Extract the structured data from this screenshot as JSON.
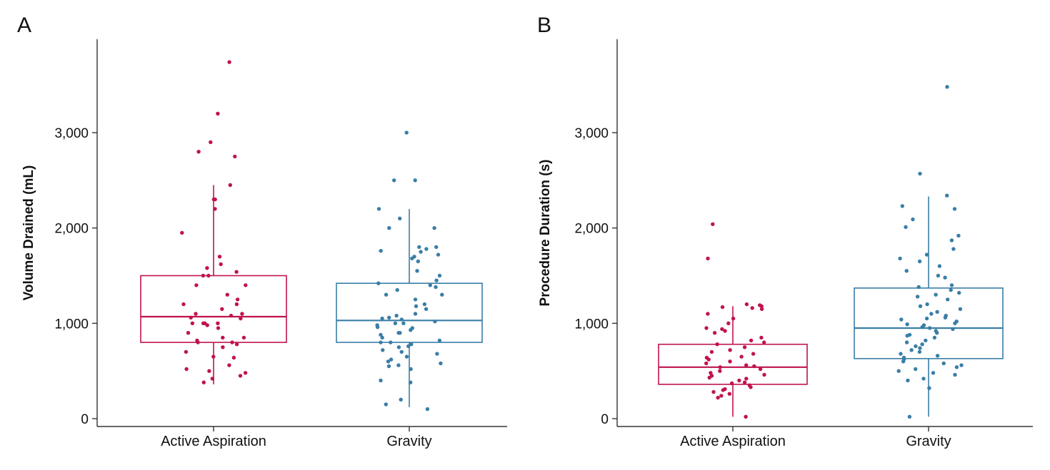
{
  "colors": {
    "active_aspiration": "#c0134f",
    "gravity": "#3a7ea6",
    "axis": "#333333"
  },
  "chart_data": [
    {
      "type": "box",
      "panel_label": "A",
      "ylabel": "Volume Drained (mL)",
      "xlabel": "",
      "ylim": [
        -50,
        4000
      ],
      "yticks": [
        0,
        1000,
        2000,
        3000
      ],
      "ytick_labels": [
        "0",
        "1,000",
        "2,000",
        "3,000"
      ],
      "categories": [
        "Active Aspiration",
        "Gravity"
      ],
      "boxes": [
        {
          "name": "Active Aspiration",
          "whisker_low": 360,
          "q1": 800,
          "median": 1070,
          "q3": 1500,
          "whisker_high": 2450
        },
        {
          "name": "Gravity",
          "whisker_low": 120,
          "q1": 800,
          "median": 1030,
          "q3": 1420,
          "whisker_high": 2200
        }
      ],
      "points": [
        [
          3740,
          3200,
          2900,
          2800,
          2750,
          2450,
          2300,
          2300,
          2200,
          1950,
          1700,
          1620,
          1580,
          1540,
          1500,
          1500,
          1400,
          1400,
          1300,
          1250,
          1200,
          1200,
          1150,
          1100,
          1100,
          1080,
          1060,
          1050,
          1000,
          1000,
          1000,
          1000,
          980,
          950,
          900,
          850,
          850,
          820,
          800,
          800,
          780,
          750,
          700,
          650,
          640,
          560,
          520,
          500,
          480,
          450,
          420,
          380
        ],
        [
          3000,
          2500,
          2500,
          2200,
          2100,
          2000,
          2000,
          1800,
          1800,
          1780,
          1760,
          1750,
          1720,
          1700,
          1680,
          1650,
          1550,
          1500,
          1450,
          1420,
          1400,
          1380,
          1350,
          1300,
          1300,
          1250,
          1200,
          1180,
          1150,
          1100,
          1080,
          1060,
          1050,
          1040,
          1020,
          1000,
          1000,
          980,
          960,
          950,
          930,
          900,
          900,
          880,
          850,
          820,
          800,
          800,
          780,
          760,
          750,
          720,
          700,
          680,
          650,
          620,
          600,
          580,
          560,
          550,
          520,
          400,
          380,
          200,
          150,
          100
        ]
      ]
    },
    {
      "type": "box",
      "panel_label": "B",
      "ylabel": "Procedure Duration (s)",
      "xlabel": "",
      "ylim": [
        -50,
        4000
      ],
      "yticks": [
        0,
        1000,
        2000,
        3000
      ],
      "ytick_labels": [
        "0",
        "1,000",
        "2,000",
        "3,000"
      ],
      "categories": [
        "Active Aspiration",
        "Gravity"
      ],
      "boxes": [
        {
          "name": "Active Aspiration",
          "whisker_low": 20,
          "q1": 360,
          "median": 540,
          "q3": 780,
          "whisker_high": 1180
        },
        {
          "name": "Gravity",
          "whisker_low": 20,
          "q1": 630,
          "median": 950,
          "q3": 1370,
          "whisker_high": 2330
        }
      ],
      "points": [
        [
          2040,
          1680,
          1200,
          1190,
          1180,
          1170,
          1160,
          1150,
          1100,
          1050,
          1000,
          950,
          940,
          920,
          900,
          850,
          820,
          800,
          780,
          750,
          720,
          700,
          680,
          650,
          640,
          620,
          600,
          580,
          560,
          550,
          540,
          520,
          500,
          480,
          460,
          450,
          430,
          420,
          400,
          380,
          370,
          350,
          330,
          310,
          300,
          280,
          260,
          240,
          220,
          20
        ],
        [
          3480,
          2570,
          2340,
          2230,
          2200,
          2090,
          2010,
          1920,
          1870,
          1780,
          1720,
          1680,
          1650,
          1600,
          1550,
          1500,
          1480,
          1400,
          1380,
          1350,
          1320,
          1300,
          1280,
          1250,
          1200,
          1180,
          1150,
          1120,
          1100,
          1080,
          1060,
          1050,
          1040,
          1020,
          1000,
          990,
          980,
          960,
          950,
          940,
          920,
          900,
          880,
          870,
          850,
          820,
          800,
          780,
          760,
          740,
          720,
          700,
          680,
          660,
          640,
          620,
          600,
          580,
          560,
          540,
          520,
          500,
          480,
          460,
          420,
          400,
          320,
          20
        ]
      ]
    }
  ]
}
